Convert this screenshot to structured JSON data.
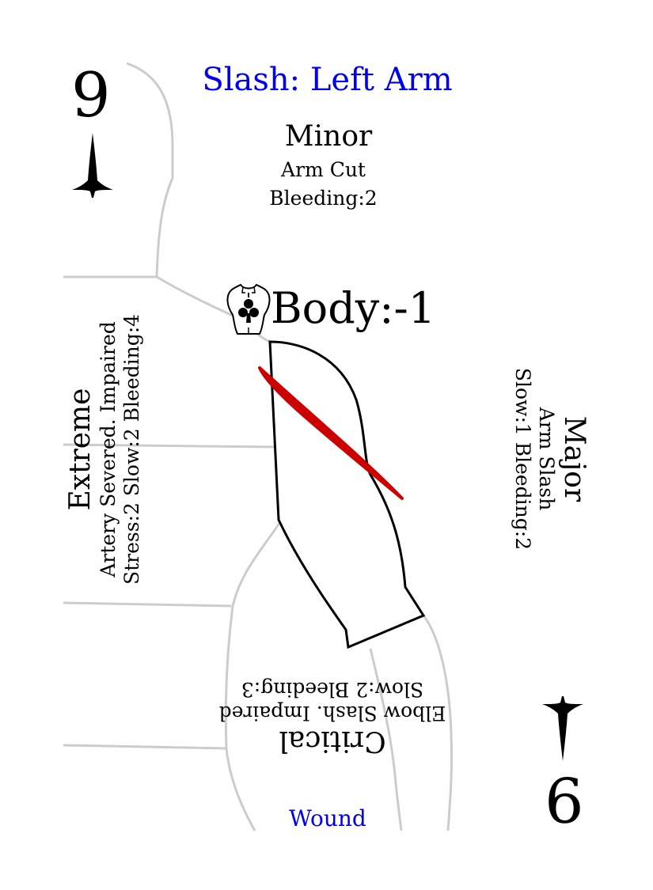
{
  "card": {
    "title": "Slash: Left Arm",
    "rank_top": "9",
    "rank_bottom": "9",
    "footer": "Wound",
    "body_modifier": "Body:-1",
    "colors": {
      "title": "#0000ee",
      "wound_mark": "#cc0000",
      "outline": "#cccccc"
    },
    "icons": {
      "suit": "dagger-icon",
      "body": "torso-club-icon"
    }
  },
  "minor": {
    "heading": "Minor",
    "line1": "Arm Cut",
    "line2": "Bleeding:2"
  },
  "major": {
    "heading": "Major",
    "line1": "Arm Slash",
    "line2": "Slow:1 Bleeding:2"
  },
  "critical": {
    "heading": "Critical",
    "line1": "Elbow Slash. Impaired",
    "line2": "Slow:2 Bleeding:3"
  },
  "extreme": {
    "heading": "Extreme",
    "line1": "Artery Severed. Impaired",
    "line2": "Stress:2 Slow:2 Bleeding:4"
  }
}
